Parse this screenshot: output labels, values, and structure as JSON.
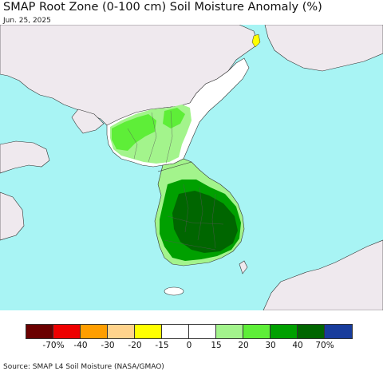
{
  "title": "SMAP Root Zone (0-100 cm) Soil Moisture Anomaly (%)",
  "date": "Jun. 25, 2025",
  "source": "Source: SMAP L4 Soil Moisture (NASA/GMAO)",
  "colors": {
    "ocean": "#a8f4f4",
    "land_no_data": "#efe9ee",
    "land_neutral": "#ffffff",
    "border": "#333333"
  },
  "legend": {
    "colors": [
      "#6b0000",
      "#ee0000",
      "#ff9e00",
      "#ffd38c",
      "#ffff00",
      "#ffffff",
      "#ffffff",
      "#a3f48c",
      "#5eee38",
      "#00a000",
      "#006600",
      "#183c9c"
    ],
    "tick_labels": [
      "-70%",
      "-40",
      "-30",
      "-20",
      "-15",
      "0",
      "15",
      "20",
      "30",
      "40",
      "70%"
    ]
  }
}
